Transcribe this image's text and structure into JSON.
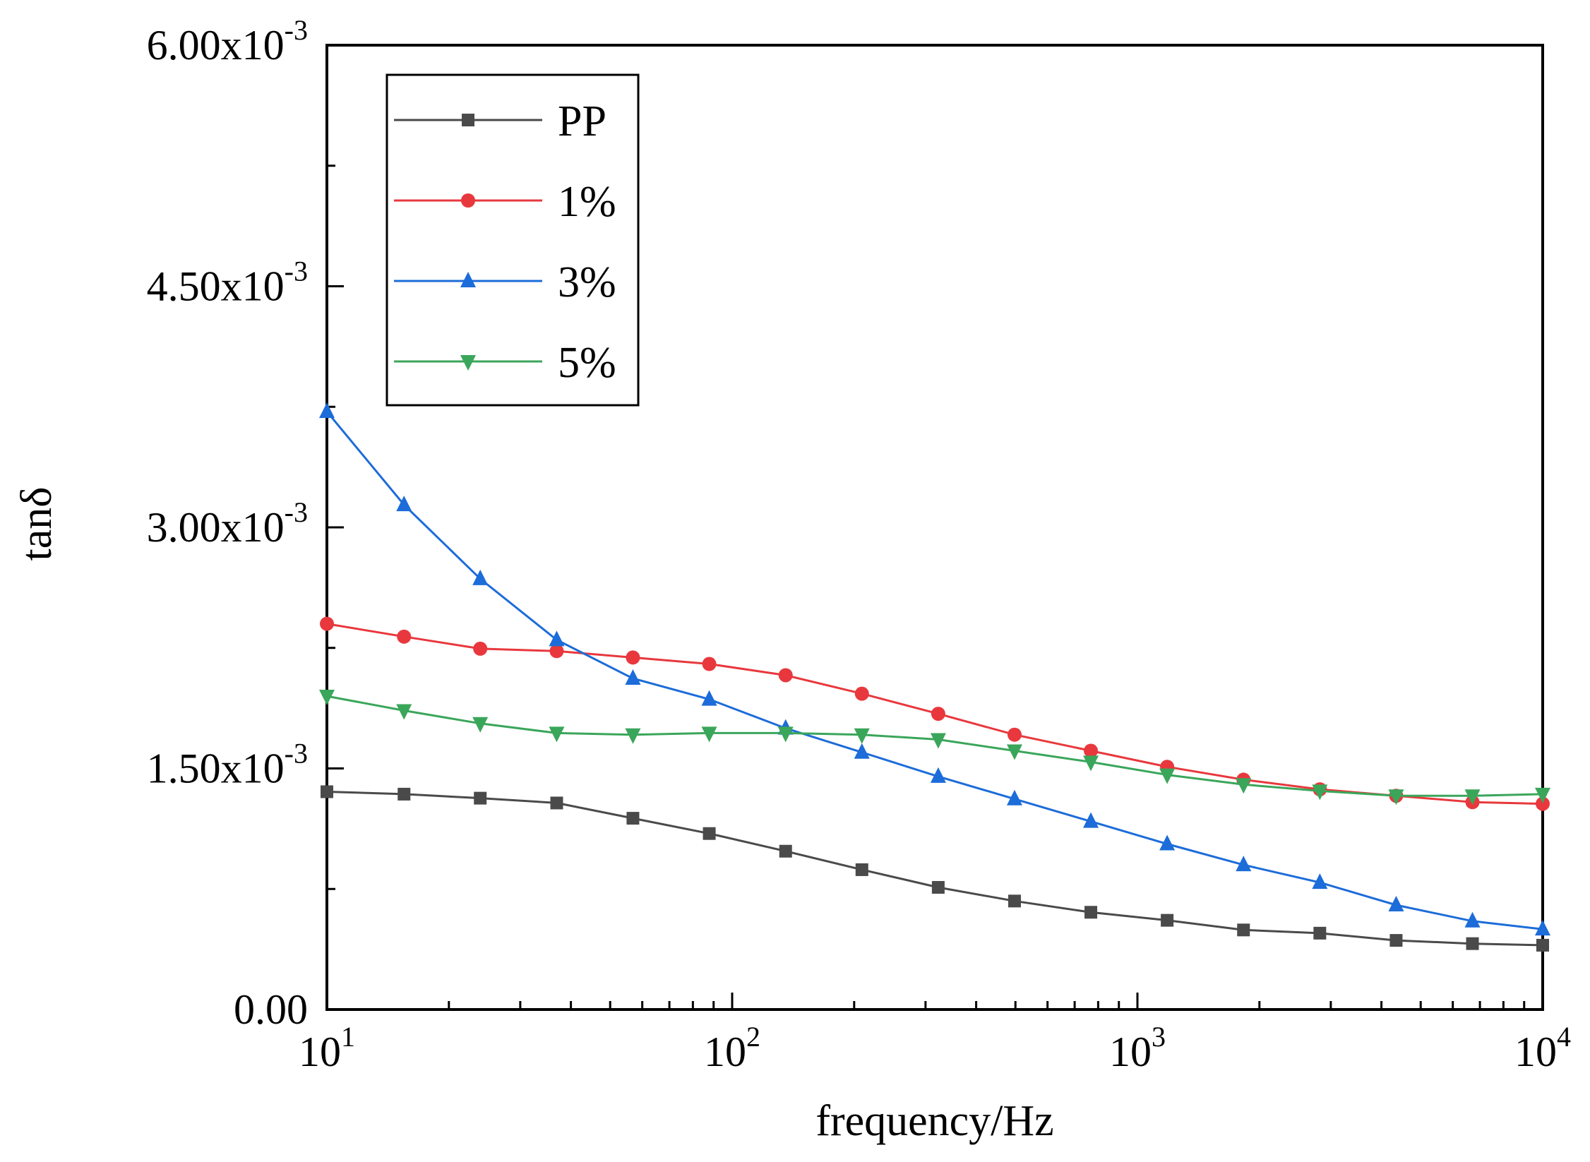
{
  "chart_data": {
    "type": "line",
    "xscale": "log",
    "xlim": [
      10,
      10000
    ],
    "ylim": [
      0,
      0.006
    ],
    "xlabel": "frequency/Hz",
    "ylabel": "tanδ",
    "x_ticks": [
      {
        "base": "10",
        "exp": "1"
      },
      {
        "base": "10",
        "exp": "2"
      },
      {
        "base": "10",
        "exp": "3"
      },
      {
        "base": "10",
        "exp": "4"
      }
    ],
    "y_ticks": [
      {
        "value": 0,
        "mant": "0.00",
        "suffix": "",
        "exp": ""
      },
      {
        "value": 0.0015,
        "mant": "1.50",
        "suffix": "x10",
        "exp": "-3"
      },
      {
        "value": 0.003,
        "mant": "3.00",
        "suffix": "x10",
        "exp": "-3"
      },
      {
        "value": 0.0045,
        "mant": "4.50",
        "suffix": "x10",
        "exp": "-3"
      },
      {
        "value": 0.006,
        "mant": "6.00",
        "suffix": "x10",
        "exp": "-3"
      }
    ],
    "legend_position": "top-left",
    "x": [
      10,
      15.5,
      23.9,
      36.9,
      56.9,
      87.8,
      135.5,
      209,
      322.5,
      497.5,
      767.5,
      1184,
      1827,
      2819,
      4349,
      6710,
      10000
    ],
    "series": [
      {
        "name": "PP",
        "color": "#4a4a4a",
        "marker": "square",
        "values": [
          0.001355,
          0.00134,
          0.001315,
          0.001285,
          0.00119,
          0.001095,
          0.000985,
          0.00087,
          0.00076,
          0.000675,
          0.000605,
          0.000555,
          0.000495,
          0.000475,
          0.00043,
          0.00041,
          0.0004
        ]
      },
      {
        "name": "1%",
        "color": "#e8383d",
        "marker": "circle",
        "values": [
          0.0024,
          0.00232,
          0.002245,
          0.00223,
          0.00219,
          0.00215,
          0.00208,
          0.001965,
          0.00184,
          0.00171,
          0.00161,
          0.00151,
          0.00143,
          0.00137,
          0.00133,
          0.00129,
          0.00128
        ]
      },
      {
        "name": "3%",
        "color": "#1c6cd9",
        "marker": "triangle-up",
        "values": [
          0.00372,
          0.00314,
          0.00268,
          0.0023,
          0.00206,
          0.00193,
          0.00175,
          0.0016,
          0.00145,
          0.00131,
          0.00117,
          0.00103,
          0.0009,
          0.00079,
          0.00065,
          0.00055,
          0.0005
        ]
      },
      {
        "name": "5%",
        "color": "#3aa65a",
        "marker": "triangle-down",
        "values": [
          0.00195,
          0.00186,
          0.00178,
          0.00172,
          0.00171,
          0.00172,
          0.00172,
          0.00171,
          0.00168,
          0.00161,
          0.00154,
          0.00146,
          0.0014,
          0.00136,
          0.00133,
          0.00133,
          0.00134
        ]
      }
    ]
  }
}
